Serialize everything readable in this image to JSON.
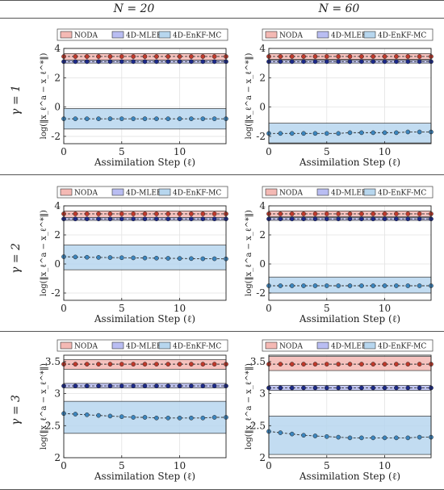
{
  "column_headers": [
    "N = 20",
    "N = 60"
  ],
  "row_labels": [
    "γ = 1",
    "γ = 2",
    "γ = 3"
  ],
  "colors": {
    "NODA": "#c0392b",
    "4D-MLEF": "#1c2a8a",
    "4D-EnKF-MC": "#3c86bf"
  },
  "chart_data": [
    {
      "type": "line",
      "title": "",
      "row": 0,
      "col": 0,
      "xlabel": "Assimilation Step (ℓ)",
      "ylabel": "log(‖x_ℓ^a − x_ℓ^*‖)",
      "xlim": [
        0,
        14
      ],
      "ylim": [
        -2.5,
        4
      ],
      "xticks": [
        0,
        5,
        10
      ],
      "yticks": [
        -2,
        0,
        2,
        4
      ],
      "legend": "top",
      "x": [
        0,
        1,
        2,
        3,
        4,
        5,
        6,
        7,
        8,
        9,
        10,
        11,
        12,
        13,
        14
      ],
      "series": [
        {
          "name": "NODA",
          "values": [
            3.45,
            3.45,
            3.45,
            3.45,
            3.45,
            3.45,
            3.45,
            3.45,
            3.45,
            3.45,
            3.45,
            3.45,
            3.45,
            3.45,
            3.45
          ],
          "band_low": 3.2,
          "band_high": 3.65
        },
        {
          "name": "4D-MLEF",
          "values": [
            3.1,
            3.1,
            3.1,
            3.1,
            3.1,
            3.1,
            3.1,
            3.1,
            3.1,
            3.1,
            3.1,
            3.1,
            3.1,
            3.1,
            3.1
          ],
          "band_low": 3.0,
          "band_high": 3.2
        },
        {
          "name": "4D-EnKF-MC",
          "values": [
            -0.8,
            -0.8,
            -0.8,
            -0.8,
            -0.8,
            -0.8,
            -0.8,
            -0.8,
            -0.8,
            -0.8,
            -0.8,
            -0.8,
            -0.8,
            -0.8,
            -0.8
          ],
          "band_low": -1.5,
          "band_high": -0.1
        }
      ]
    },
    {
      "type": "line",
      "title": "",
      "row": 0,
      "col": 1,
      "xlabel": "Assimilation Step (ℓ)",
      "ylabel": "log(‖x_ℓ^a − x_ℓ^*‖)",
      "xlim": [
        0,
        14
      ],
      "ylim": [
        -2.5,
        4
      ],
      "xticks": [
        0,
        5,
        10
      ],
      "yticks": [
        -2,
        0,
        2,
        4
      ],
      "legend": "top",
      "x": [
        0,
        1,
        2,
        3,
        4,
        5,
        6,
        7,
        8,
        9,
        10,
        11,
        12,
        13,
        14
      ],
      "series": [
        {
          "name": "NODA",
          "values": [
            3.45,
            3.45,
            3.45,
            3.45,
            3.45,
            3.45,
            3.45,
            3.45,
            3.45,
            3.45,
            3.45,
            3.45,
            3.45,
            3.45,
            3.45
          ],
          "band_low": 3.25,
          "band_high": 3.65
        },
        {
          "name": "4D-MLEF",
          "values": [
            3.1,
            3.1,
            3.1,
            3.1,
            3.1,
            3.1,
            3.1,
            3.1,
            3.1,
            3.1,
            3.1,
            3.1,
            3.1,
            3.1,
            3.1
          ],
          "band_low": 3.0,
          "band_high": 3.2
        },
        {
          "name": "4D-EnKF-MC",
          "values": [
            -1.8,
            -1.8,
            -1.8,
            -1.8,
            -1.8,
            -1.8,
            -1.8,
            -1.75,
            -1.75,
            -1.75,
            -1.75,
            -1.75,
            -1.7,
            -1.7,
            -1.7
          ],
          "band_low": -2.45,
          "band_high": -1.1
        }
      ]
    },
    {
      "type": "line",
      "title": "",
      "row": 1,
      "col": 0,
      "xlabel": "Assimilation Step (ℓ)",
      "ylabel": "log(‖x_ℓ^a − x_ℓ^*‖)",
      "xlim": [
        0,
        14
      ],
      "ylim": [
        -2.5,
        4
      ],
      "xticks": [
        0,
        5,
        10
      ],
      "yticks": [
        -2,
        0,
        2,
        4
      ],
      "legend": "top",
      "x": [
        0,
        1,
        2,
        3,
        4,
        5,
        6,
        7,
        8,
        9,
        10,
        11,
        12,
        13,
        14
      ],
      "series": [
        {
          "name": "NODA",
          "values": [
            3.45,
            3.45,
            3.45,
            3.45,
            3.45,
            3.45,
            3.45,
            3.45,
            3.45,
            3.45,
            3.45,
            3.45,
            3.45,
            3.45,
            3.45
          ],
          "band_low": 3.2,
          "band_high": 3.65
        },
        {
          "name": "4D-MLEF",
          "values": [
            3.1,
            3.1,
            3.1,
            3.1,
            3.1,
            3.1,
            3.1,
            3.1,
            3.1,
            3.1,
            3.1,
            3.1,
            3.1,
            3.1,
            3.1
          ],
          "band_low": 3.0,
          "band_high": 3.2
        },
        {
          "name": "4D-EnKF-MC",
          "values": [
            0.5,
            0.48,
            0.46,
            0.45,
            0.44,
            0.43,
            0.42,
            0.41,
            0.4,
            0.39,
            0.38,
            0.37,
            0.36,
            0.36,
            0.35
          ],
          "band_low": -0.4,
          "band_high": 1.3
        }
      ]
    },
    {
      "type": "line",
      "title": "",
      "row": 1,
      "col": 1,
      "xlabel": "Assimilation Step (ℓ)",
      "ylabel": "log(‖x_ℓ^a − x_ℓ^*‖)",
      "xlim": [
        0,
        14
      ],
      "ylim": [
        -2.5,
        4
      ],
      "xticks": [
        0,
        5,
        10
      ],
      "yticks": [
        -2,
        0,
        2,
        4
      ],
      "legend": "top",
      "x": [
        0,
        1,
        2,
        3,
        4,
        5,
        6,
        7,
        8,
        9,
        10,
        11,
        12,
        13,
        14
      ],
      "series": [
        {
          "name": "NODA",
          "values": [
            3.45,
            3.45,
            3.45,
            3.45,
            3.45,
            3.45,
            3.45,
            3.45,
            3.45,
            3.45,
            3.45,
            3.45,
            3.45,
            3.45,
            3.45
          ],
          "band_low": 3.25,
          "band_high": 3.65
        },
        {
          "name": "4D-MLEF",
          "values": [
            3.1,
            3.1,
            3.1,
            3.1,
            3.1,
            3.1,
            3.1,
            3.1,
            3.1,
            3.1,
            3.1,
            3.1,
            3.1,
            3.1,
            3.1
          ],
          "band_low": 3.0,
          "band_high": 3.2
        },
        {
          "name": "4D-EnKF-MC",
          "values": [
            -1.5,
            -1.5,
            -1.5,
            -1.5,
            -1.5,
            -1.5,
            -1.5,
            -1.5,
            -1.5,
            -1.5,
            -1.5,
            -1.5,
            -1.5,
            -1.5,
            -1.5
          ],
          "band_low": -2.0,
          "band_high": -0.9
        }
      ]
    },
    {
      "type": "line",
      "title": "",
      "row": 2,
      "col": 0,
      "xlabel": "Assimilation Step (ℓ)",
      "ylabel": "log(‖x_ℓ^a − x_ℓ^*‖)",
      "xlim": [
        0,
        14
      ],
      "ylim": [
        2,
        3.6
      ],
      "xticks": [
        0,
        5,
        10
      ],
      "yticks": [
        2,
        2.5,
        3,
        3.5
      ],
      "legend": "top",
      "x": [
        0,
        1,
        2,
        3,
        4,
        5,
        6,
        7,
        8,
        9,
        10,
        11,
        12,
        13,
        14
      ],
      "series": [
        {
          "name": "NODA",
          "values": [
            3.46,
            3.46,
            3.46,
            3.46,
            3.46,
            3.46,
            3.46,
            3.46,
            3.46,
            3.46,
            3.46,
            3.46,
            3.46,
            3.46,
            3.46
          ],
          "band_low": 3.38,
          "band_high": 3.53
        },
        {
          "name": "4D-MLEF",
          "values": [
            3.12,
            3.12,
            3.12,
            3.12,
            3.12,
            3.12,
            3.12,
            3.12,
            3.12,
            3.12,
            3.12,
            3.12,
            3.12,
            3.12,
            3.12
          ],
          "band_low": 3.09,
          "band_high": 3.16
        },
        {
          "name": "4D-EnKF-MC",
          "values": [
            2.69,
            2.68,
            2.67,
            2.66,
            2.65,
            2.64,
            2.63,
            2.63,
            2.62,
            2.62,
            2.62,
            2.62,
            2.62,
            2.63,
            2.63
          ],
          "band_low": 2.38,
          "band_high": 2.88
        }
      ]
    },
    {
      "type": "line",
      "title": "",
      "row": 2,
      "col": 1,
      "xlabel": "Assimilation Step (ℓ)",
      "ylabel": "log(‖x_ℓ^a − x_ℓ^*‖)",
      "xlim": [
        0,
        14
      ],
      "ylim": [
        2,
        3.6
      ],
      "xticks": [
        0,
        5,
        10
      ],
      "yticks": [
        2,
        2.5,
        3,
        3.5
      ],
      "legend": "top",
      "x": [
        0,
        1,
        2,
        3,
        4,
        5,
        6,
        7,
        8,
        9,
        10,
        11,
        12,
        13,
        14
      ],
      "series": [
        {
          "name": "NODA",
          "values": [
            3.46,
            3.46,
            3.46,
            3.46,
            3.46,
            3.46,
            3.46,
            3.46,
            3.46,
            3.46,
            3.46,
            3.46,
            3.46,
            3.46,
            3.46
          ],
          "band_low": 3.36,
          "band_high": 3.58
        },
        {
          "name": "4D-MLEF",
          "values": [
            3.09,
            3.09,
            3.09,
            3.09,
            3.09,
            3.09,
            3.09,
            3.09,
            3.09,
            3.09,
            3.09,
            3.09,
            3.09,
            3.09,
            3.09
          ],
          "band_low": 3.05,
          "band_high": 3.13
        },
        {
          "name": "4D-EnKF-MC",
          "values": [
            2.41,
            2.39,
            2.37,
            2.35,
            2.34,
            2.33,
            2.32,
            2.31,
            2.31,
            2.31,
            2.31,
            2.31,
            2.31,
            2.32,
            2.32
          ],
          "band_low": 2.05,
          "band_high": 2.65
        }
      ]
    }
  ]
}
